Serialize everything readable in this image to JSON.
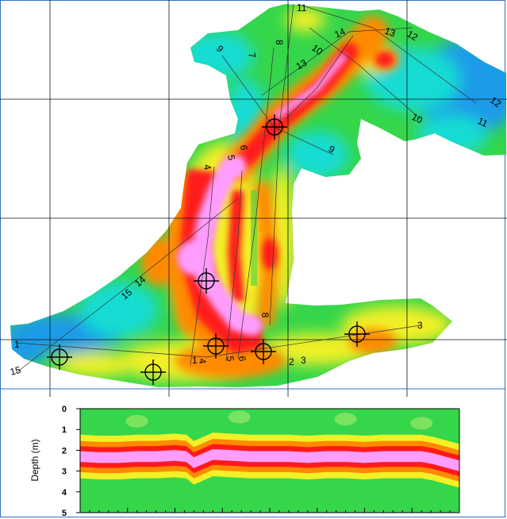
{
  "colors": {
    "low": "#1e9be8",
    "low_mid": "#17dcd3",
    "mid": "#35d64a",
    "mid_high": "#f2f026",
    "high": "#ff8a00",
    "very_high": "#ff1a1a",
    "peak": "#ff9dff",
    "grid": "#111111",
    "frame": "#2f6fc4"
  },
  "icons": [
    "crosshair-marker-icon"
  ],
  "map": {
    "line_labels": [
      {
        "id": "l11-top",
        "text": "11"
      },
      {
        "id": "l14-top",
        "text": "14"
      },
      {
        "id": "l13-top",
        "text": "13"
      },
      {
        "id": "l12-top",
        "text": "12"
      },
      {
        "id": "l8-top",
        "text": "8"
      },
      {
        "id": "l9-top",
        "text": "9"
      },
      {
        "id": "l7-top",
        "text": "7"
      },
      {
        "id": "l10-top",
        "text": "10"
      },
      {
        "id": "l13-mid",
        "text": "13"
      },
      {
        "id": "l12-right",
        "text": "12"
      },
      {
        "id": "l10-right",
        "text": "10"
      },
      {
        "id": "l11-right",
        "text": "11"
      },
      {
        "id": "l9-mid",
        "text": "9"
      },
      {
        "id": "l6-mid",
        "text": "6"
      },
      {
        "id": "l5-mid",
        "text": "5"
      },
      {
        "id": "l4-mid",
        "text": "4"
      },
      {
        "id": "l15-left",
        "text": "15"
      },
      {
        "id": "l14-left",
        "text": "14"
      },
      {
        "id": "l8-low",
        "text": "8"
      },
      {
        "id": "l3-right",
        "text": "3"
      },
      {
        "id": "l1-left",
        "text": "1"
      },
      {
        "id": "l15-bottom",
        "text": "15"
      },
      {
        "id": "l1-bottom",
        "text": "1"
      },
      {
        "id": "l4-bottom",
        "text": "4"
      },
      {
        "id": "l5-bottom",
        "text": "5"
      },
      {
        "id": "l6-bottom",
        "text": "6"
      },
      {
        "id": "l2-bottom",
        "text": "2"
      },
      {
        "id": "l3-bottom",
        "text": "3"
      }
    ]
  },
  "chart_data": {
    "type": "heatmap",
    "title": "",
    "xlabel": "",
    "ylabel": "Depth (m)",
    "ylim": [
      0,
      5
    ],
    "y_inverted": true,
    "y_ticks": [
      0,
      1,
      2,
      3,
      4,
      5
    ],
    "y_tick_labels": [
      "0",
      "1",
      "2",
      "3",
      "4",
      "5"
    ],
    "x_ticks_labeled": false,
    "series": [
      {
        "name": "",
        "x_fraction": [
          0.0,
          0.05,
          0.1,
          0.15,
          0.2,
          0.25,
          0.28,
          0.3,
          0.35,
          0.4,
          0.45,
          0.5,
          0.55,
          0.6,
          0.65,
          0.7,
          0.75,
          0.8,
          0.85,
          0.9,
          0.93,
          0.96,
          1.0
        ],
        "peak_depth_m": [
          2.3,
          2.35,
          2.35,
          2.3,
          2.3,
          2.25,
          2.3,
          2.6,
          2.2,
          2.25,
          2.3,
          2.3,
          2.3,
          2.35,
          2.3,
          2.3,
          2.35,
          2.3,
          2.3,
          2.3,
          2.4,
          2.55,
          2.75
        ]
      }
    ]
  }
}
